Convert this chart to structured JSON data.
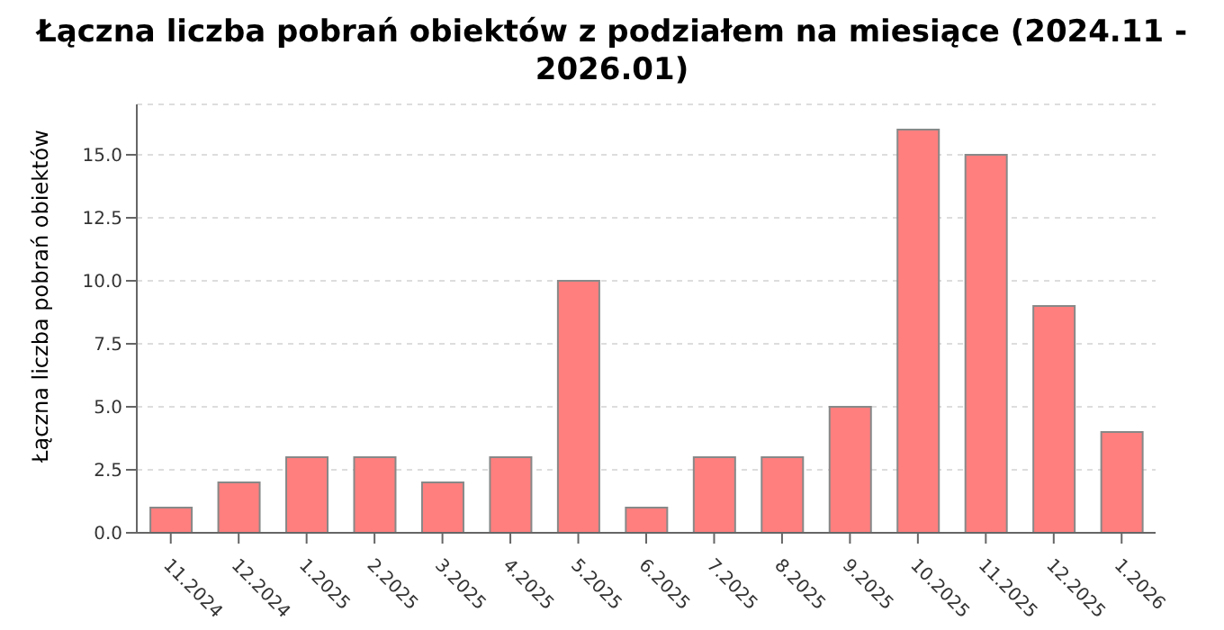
{
  "chart_data": {
    "type": "bar",
    "title": "Łączna liczba pobrań obiektów z podziałem na miesiące (2024.11 - 2026.01)",
    "ylabel": "Łączna liczba pobrań obiektów",
    "categories": [
      "11.2024",
      "12.2024",
      "1.2025",
      "2.2025",
      "3.2025",
      "4.2025",
      "5.2025",
      "6.2025",
      "7.2025",
      "8.2025",
      "9.2025",
      "10.2025",
      "11.2025",
      "12.2025",
      "1.2026"
    ],
    "values": [
      1,
      2,
      3,
      3,
      2,
      3,
      10,
      1,
      3,
      3,
      5,
      16,
      15,
      9,
      4
    ],
    "color": "#ff7f7f",
    "ylim": [
      0,
      17
    ],
    "yticks": [
      {
        "value": 0,
        "label": "0.0"
      },
      {
        "value": 2.5,
        "label": "2.5"
      },
      {
        "value": 5,
        "label": "5.0"
      },
      {
        "value": 7.5,
        "label": "7.5"
      },
      {
        "value": 10,
        "label": "10.0"
      },
      {
        "value": 12.5,
        "label": "12.5"
      },
      {
        "value": 15,
        "label": "15.0"
      }
    ],
    "grid": "y"
  }
}
